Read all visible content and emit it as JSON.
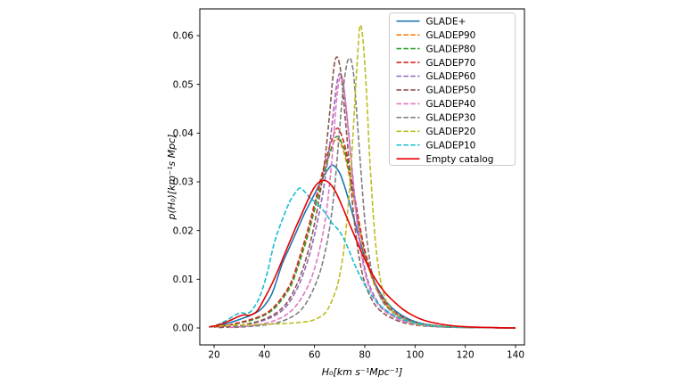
{
  "figure": {
    "background": "#ffffff",
    "spine_color": "#000000",
    "legend_border_color": "#cccccc"
  },
  "chart_data": {
    "type": "line",
    "title": "",
    "xlabel": "H₀[km s⁻¹Mpc⁻¹]",
    "ylabel": "p(H₀)[km⁻¹s Mpc]",
    "xlim": [
      14.3,
      143.5
    ],
    "ylim": [
      -0.003,
      0.0655
    ],
    "x_ticks": [
      20,
      40,
      60,
      80,
      100,
      120,
      140
    ],
    "y_ticks": [
      0.0,
      0.01,
      0.02,
      0.03,
      0.04,
      0.05,
      0.06
    ],
    "y_tick_labels": [
      "0.00",
      "0.01",
      "0.02",
      "0.03",
      "0.04",
      "0.05",
      "0.06"
    ],
    "grid": false,
    "legend_position": "upper right",
    "series": [
      {
        "name": "GLADE+",
        "color": "#1f77b4",
        "style": "solid",
        "x": [
          19,
          23,
          27,
          31,
          35,
          39,
          43,
          47,
          50,
          53,
          56,
          59,
          62,
          64,
          66,
          67,
          68,
          70,
          72,
          74,
          76,
          78,
          80,
          83,
          86,
          89,
          92,
          96,
          100,
          105,
          112,
          122,
          140
        ],
        "y": [
          0.0002,
          0.0006,
          0.0012,
          0.0019,
          0.0027,
          0.004,
          0.007,
          0.013,
          0.0165,
          0.02,
          0.0235,
          0.0265,
          0.0295,
          0.0315,
          0.033,
          0.0334,
          0.0332,
          0.0318,
          0.029,
          0.0255,
          0.0218,
          0.018,
          0.0146,
          0.0104,
          0.0073,
          0.0051,
          0.0036,
          0.0022,
          0.0013,
          0.0007,
          0.0003,
          0.0001,
          0.0
        ]
      },
      {
        "name": "GLADEP90",
        "color": "#ff7f0e",
        "style": "dashed",
        "x": [
          20,
          25,
          30,
          35,
          40,
          44,
          48,
          51,
          54,
          57,
          60,
          62,
          64,
          66,
          68,
          69,
          70,
          72,
          74,
          76,
          78,
          80,
          83,
          86,
          89,
          92,
          96,
          100,
          105,
          112,
          122,
          140
        ],
        "y": [
          0.0002,
          0.0005,
          0.001,
          0.0017,
          0.0027,
          0.0042,
          0.0068,
          0.0095,
          0.014,
          0.019,
          0.0248,
          0.0288,
          0.0325,
          0.036,
          0.0385,
          0.0388,
          0.0383,
          0.0355,
          0.0308,
          0.0255,
          0.02,
          0.0152,
          0.01,
          0.0066,
          0.0044,
          0.003,
          0.0018,
          0.0011,
          0.0005,
          0.0002,
          0.0001,
          0.0
        ]
      },
      {
        "name": "GLADEP80",
        "color": "#2ca02c",
        "style": "dashed",
        "x": [
          20,
          25,
          30,
          35,
          40,
          44,
          48,
          51,
          54,
          57,
          60,
          62,
          64,
          66,
          68,
          69,
          70,
          72,
          74,
          76,
          78,
          80,
          83,
          86,
          89,
          92,
          96,
          100,
          105,
          112,
          122,
          140
        ],
        "y": [
          0.0002,
          0.0005,
          0.001,
          0.0016,
          0.0026,
          0.004,
          0.0065,
          0.0091,
          0.0135,
          0.0184,
          0.0242,
          0.0282,
          0.032,
          0.0357,
          0.0387,
          0.0393,
          0.0389,
          0.0363,
          0.0315,
          0.0262,
          0.0206,
          0.0157,
          0.0104,
          0.0068,
          0.0046,
          0.0031,
          0.0019,
          0.0011,
          0.0005,
          0.0002,
          0.0001,
          0.0
        ]
      },
      {
        "name": "GLADEP70",
        "color": "#d62728",
        "style": "dashed",
        "x": [
          20,
          25,
          30,
          35,
          40,
          44,
          48,
          51,
          54,
          57,
          60,
          62,
          64,
          66,
          68,
          69,
          70,
          72,
          74,
          76,
          78,
          80,
          83,
          86,
          89,
          92,
          96,
          100,
          105,
          112,
          122,
          140
        ],
        "y": [
          0.0002,
          0.0005,
          0.0011,
          0.0018,
          0.0028,
          0.0044,
          0.007,
          0.0098,
          0.0145,
          0.0196,
          0.0255,
          0.0297,
          0.0336,
          0.0372,
          0.0402,
          0.041,
          0.0405,
          0.0375,
          0.0325,
          0.0268,
          0.021,
          0.016,
          0.0106,
          0.007,
          0.0047,
          0.0032,
          0.0019,
          0.0011,
          0.0005,
          0.0002,
          0.0001,
          0.0
        ]
      },
      {
        "name": "GLADEP60",
        "color": "#9467bd",
        "style": "dashed",
        "x": [
          22,
          28,
          34,
          40,
          45,
          49,
          53,
          56,
          59,
          62,
          64,
          66,
          68,
          69,
          70,
          71,
          72,
          74,
          76,
          78,
          80,
          82,
          85,
          88,
          91,
          95,
          100,
          106,
          114,
          124,
          140
        ],
        "y": [
          0.0001,
          0.0003,
          0.0008,
          0.0016,
          0.0028,
          0.0046,
          0.008,
          0.0118,
          0.017,
          0.024,
          0.03,
          0.0375,
          0.0465,
          0.0505,
          0.0522,
          0.0512,
          0.0478,
          0.0378,
          0.0268,
          0.018,
          0.0122,
          0.0086,
          0.0054,
          0.0037,
          0.0026,
          0.0016,
          0.0009,
          0.0004,
          0.0002,
          0.0001,
          0.0
        ]
      },
      {
        "name": "GLADEP50",
        "color": "#8c564b",
        "style": "dashed",
        "x": [
          22,
          28,
          34,
          40,
          45,
          49,
          53,
          56,
          59,
          62,
          64,
          66,
          67,
          68,
          69,
          70,
          71,
          73,
          75,
          77,
          79,
          81,
          84,
          87,
          90,
          94,
          98,
          104,
          112,
          122,
          140
        ],
        "y": [
          0.0001,
          0.0003,
          0.0009,
          0.0018,
          0.0032,
          0.0052,
          0.009,
          0.0132,
          0.019,
          0.027,
          0.034,
          0.044,
          0.05,
          0.0545,
          0.0556,
          0.054,
          0.05,
          0.0385,
          0.0262,
          0.017,
          0.0112,
          0.0078,
          0.0048,
          0.0032,
          0.0022,
          0.0013,
          0.0008,
          0.0004,
          0.0002,
          0.0001,
          0.0
        ]
      },
      {
        "name": "GLADEP40",
        "color": "#e377c2",
        "style": "dashed",
        "x": [
          26,
          32,
          38,
          44,
          49,
          53,
          57,
          60,
          63,
          65,
          67,
          68,
          69,
          70,
          71,
          72,
          74,
          76,
          78,
          80,
          82,
          85,
          88,
          91,
          95,
          100,
          106,
          114,
          124,
          140
        ],
        "y": [
          0.0001,
          0.0003,
          0.0007,
          0.0015,
          0.0028,
          0.0048,
          0.0082,
          0.0122,
          0.0185,
          0.025,
          0.035,
          0.042,
          0.048,
          0.0512,
          0.0508,
          0.048,
          0.0375,
          0.0262,
          0.0172,
          0.0115,
          0.008,
          0.005,
          0.0034,
          0.0024,
          0.0014,
          0.0008,
          0.0004,
          0.0002,
          0.0001,
          0.0
        ]
      },
      {
        "name": "GLADEP30",
        "color": "#7f7f7f",
        "style": "dashed",
        "x": [
          28,
          34,
          40,
          46,
          52,
          56,
          60,
          63,
          66,
          68,
          70,
          71,
          72,
          73,
          74,
          75,
          76,
          78,
          80,
          82,
          84,
          87,
          90,
          93,
          97,
          102,
          108,
          116,
          126,
          140
        ],
        "y": [
          0.0001,
          0.0003,
          0.0006,
          0.0012,
          0.0026,
          0.0046,
          0.0085,
          0.013,
          0.0205,
          0.029,
          0.041,
          0.047,
          0.0515,
          0.0545,
          0.0554,
          0.054,
          0.0495,
          0.0355,
          0.0222,
          0.0138,
          0.0092,
          0.0055,
          0.0037,
          0.0026,
          0.0016,
          0.0009,
          0.0005,
          0.0002,
          0.0001,
          0.0
        ]
      },
      {
        "name": "GLADEP20",
        "color": "#bcbd22",
        "style": "dashed",
        "x": [
          19,
          24,
          30,
          36,
          42,
          48,
          53,
          58,
          62,
          65,
          68,
          70,
          72,
          74,
          75,
          76,
          77,
          78,
          79,
          80,
          81,
          82,
          84,
          86,
          88,
          90,
          93,
          97,
          102,
          108,
          116,
          126,
          140
        ],
        "y": [
          0.0003,
          0.0005,
          0.0006,
          0.0007,
          0.0008,
          0.0009,
          0.0011,
          0.0014,
          0.0022,
          0.0036,
          0.007,
          0.0108,
          0.0175,
          0.029,
          0.037,
          0.046,
          0.0548,
          0.0618,
          0.0605,
          0.0542,
          0.045,
          0.0345,
          0.019,
          0.0105,
          0.0063,
          0.0042,
          0.0025,
          0.0014,
          0.0007,
          0.0004,
          0.0002,
          0.0001,
          0.0
        ]
      },
      {
        "name": "GLADEP10",
        "color": "#17becf",
        "style": "dashed",
        "x": [
          18,
          21,
          24,
          27,
          29,
          31,
          33,
          35,
          38,
          41,
          44,
          47,
          50,
          52,
          54,
          56,
          58,
          61,
          64,
          67,
          70,
          73,
          76,
          79,
          82,
          85,
          88,
          92,
          96,
          101,
          107,
          115,
          126,
          140
        ],
        "y": [
          0.0002,
          0.0006,
          0.0013,
          0.0022,
          0.0028,
          0.0031,
          0.003,
          0.0036,
          0.0062,
          0.011,
          0.0175,
          0.022,
          0.0258,
          0.0275,
          0.0287,
          0.028,
          0.0268,
          0.0255,
          0.0238,
          0.0215,
          0.0198,
          0.0168,
          0.013,
          0.0098,
          0.0072,
          0.0052,
          0.0038,
          0.0025,
          0.0016,
          0.0009,
          0.0004,
          0.0002,
          0.0001,
          0.0
        ]
      },
      {
        "name": "Empty catalog",
        "color": "#e50000",
        "style": "solid",
        "x": [
          18,
          21,
          24,
          27,
          30,
          32,
          34,
          37,
          40,
          43,
          46,
          49,
          52,
          55,
          58,
          60,
          62,
          64,
          66,
          68,
          70,
          73,
          76,
          79,
          82,
          85,
          88,
          91,
          95,
          99,
          104,
          110,
          118,
          128,
          140
        ],
        "y": [
          0.0002,
          0.0005,
          0.001,
          0.0017,
          0.0024,
          0.0027,
          0.0026,
          0.0034,
          0.006,
          0.009,
          0.0125,
          0.0163,
          0.02,
          0.0235,
          0.027,
          0.0289,
          0.03,
          0.0303,
          0.0297,
          0.0283,
          0.0262,
          0.0225,
          0.0188,
          0.0152,
          0.012,
          0.0094,
          0.0073,
          0.0057,
          0.0039,
          0.0026,
          0.0015,
          0.0008,
          0.0003,
          0.0001,
          0.0
        ]
      }
    ]
  }
}
